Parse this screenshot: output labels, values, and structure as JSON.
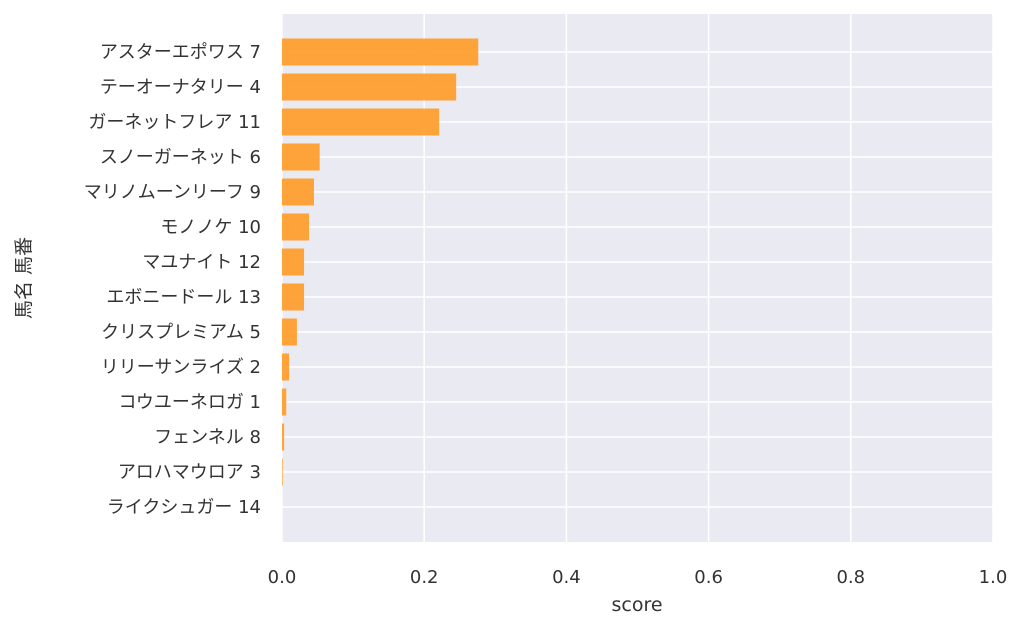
{
  "chart_data": {
    "type": "bar",
    "orientation": "horizontal",
    "xlabel": "score",
    "ylabel": "馬名 馬番",
    "xlim": [
      0.0,
      1.0
    ],
    "xticks": [
      "0.0",
      "0.2",
      "0.4",
      "0.6",
      "0.8",
      "1.0"
    ],
    "grid": true,
    "bar_color": "#ff9c2a",
    "plot_background": "#eaeaf2",
    "categories": [
      "アスターエポワス 7",
      "テーオーナタリー 4",
      "ガーネットフレア 11",
      "スノーガーネット 6",
      "マリノムーンリーフ 9",
      "モノノケ 10",
      "マユナイト 12",
      "エボニードール 13",
      "クリスプレミアム 5",
      "リリーサンライズ 2",
      "コウユーネロガ 1",
      "フェンネル 8",
      "アロハマウロア 3",
      "ライクシュガー 14"
    ],
    "values": [
      0.276,
      0.245,
      0.221,
      0.053,
      0.045,
      0.038,
      0.031,
      0.031,
      0.021,
      0.01,
      0.006,
      0.003,
      0.001,
      0.0
    ]
  }
}
